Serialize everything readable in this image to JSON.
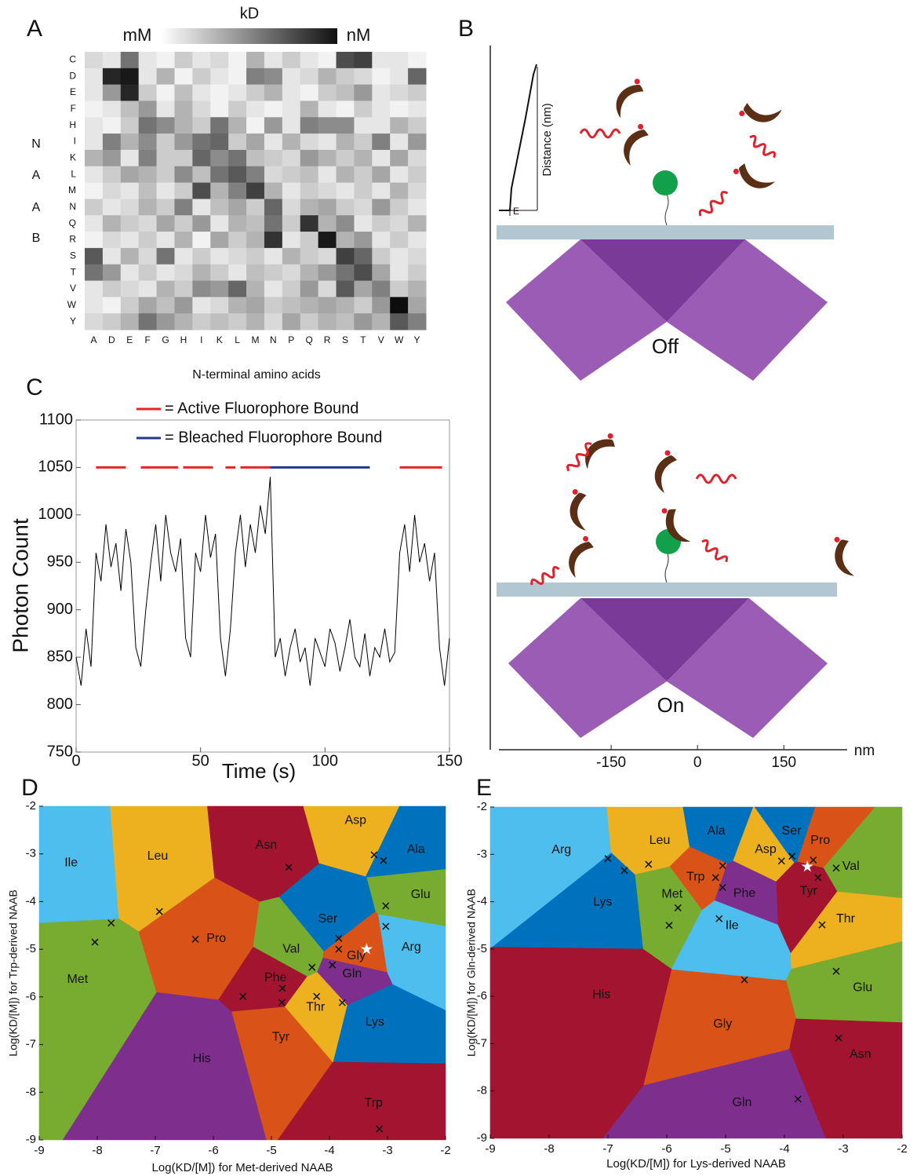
{
  "panel_labels": [
    "A",
    "B",
    "C",
    "D",
    "E"
  ],
  "chart_data": [
    {
      "type": "heatmap",
      "x_label": "N-terminal amino acids",
      "y_label": [
        "N",
        "A",
        "A",
        "B"
      ],
      "colorbar_label": "kD",
      "colorbar_low": "mM",
      "colorbar_high": "nM",
      "columns": [
        "A",
        "D",
        "E",
        "F",
        "G",
        "H",
        "I",
        "K",
        "L",
        "M",
        "N",
        "P",
        "Q",
        "R",
        "S",
        "T",
        "V",
        "W",
        "Y"
      ],
      "rows": [
        "C",
        "D",
        "E",
        "F",
        "H",
        "I",
        "K",
        "L",
        "M",
        "N",
        "Q",
        "R",
        "S",
        "T",
        "V",
        "W",
        "Y"
      ],
      "values": [
        [
          0.15,
          0.1,
          0.55,
          0.1,
          0.05,
          0.2,
          0.1,
          0.15,
          0.05,
          0.3,
          0.1,
          0.2,
          0.1,
          0.05,
          0.7,
          0.75,
          0.1,
          0.1,
          0.05
        ],
        [
          0.1,
          0.85,
          0.9,
          0.1,
          0.3,
          0.05,
          0.2,
          0.1,
          0.05,
          0.5,
          0.45,
          0.1,
          0.15,
          0.3,
          0.2,
          0.15,
          0.05,
          0.1,
          0.6
        ],
        [
          0.1,
          0.4,
          0.85,
          0.2,
          0.05,
          0.25,
          0.1,
          0.05,
          0.1,
          0.2,
          0.3,
          0.1,
          0.05,
          0.2,
          0.25,
          0.4,
          0.1,
          0.15,
          0.2
        ],
        [
          0.05,
          0.1,
          0.25,
          0.4,
          0.1,
          0.3,
          0.15,
          0.05,
          0.2,
          0.1,
          0.05,
          0.1,
          0.3,
          0.1,
          0.05,
          0.2,
          0.1,
          0.05,
          0.1
        ],
        [
          0.1,
          0.05,
          0.2,
          0.55,
          0.45,
          0.3,
          0.2,
          0.55,
          0.3,
          0.05,
          0.4,
          0.1,
          0.5,
          0.45,
          0.45,
          0.1,
          0.1,
          0.3,
          0.2
        ],
        [
          0.1,
          0.5,
          0.3,
          0.45,
          0.2,
          0.4,
          0.55,
          0.6,
          0.2,
          0.35,
          0.1,
          0.3,
          0.15,
          0.1,
          0.3,
          0.2,
          0.5,
          0.1,
          0.4
        ],
        [
          0.3,
          0.4,
          0.1,
          0.5,
          0.2,
          0.2,
          0.6,
          0.45,
          0.55,
          0.25,
          0.2,
          0.15,
          0.4,
          0.3,
          0.2,
          0.3,
          0.1,
          0.35,
          0.15
        ],
        [
          0.1,
          0.2,
          0.35,
          0.3,
          0.2,
          0.45,
          0.25,
          0.55,
          0.65,
          0.5,
          0.15,
          0.2,
          0.25,
          0.1,
          0.3,
          0.2,
          0.35,
          0.1,
          0.2
        ],
        [
          0.05,
          0.15,
          0.1,
          0.25,
          0.1,
          0.2,
          0.7,
          0.3,
          0.5,
          0.75,
          0.3,
          0.1,
          0.2,
          0.15,
          0.1,
          0.2,
          0.1,
          0.3,
          0.15
        ],
        [
          0.2,
          0.1,
          0.15,
          0.3,
          0.2,
          0.5,
          0.1,
          0.25,
          0.35,
          0.2,
          0.6,
          0.15,
          0.3,
          0.35,
          0.2,
          0.15,
          0.4,
          0.2,
          0.1
        ],
        [
          0.1,
          0.3,
          0.2,
          0.15,
          0.35,
          0.2,
          0.4,
          0.1,
          0.3,
          0.25,
          0.55,
          0.2,
          0.8,
          0.3,
          0.45,
          0.1,
          0.2,
          0.15,
          0.3
        ],
        [
          0.05,
          0.15,
          0.1,
          0.2,
          0.1,
          0.3,
          0.05,
          0.35,
          0.2,
          0.3,
          0.8,
          0.1,
          0.2,
          0.9,
          0.3,
          0.4,
          0.1,
          0.2,
          0.1
        ],
        [
          0.65,
          0.1,
          0.3,
          0.15,
          0.55,
          0.1,
          0.2,
          0.1,
          0.15,
          0.2,
          0.1,
          0.3,
          0.2,
          0.15,
          0.75,
          0.6,
          0.2,
          0.1,
          0.15
        ],
        [
          0.55,
          0.4,
          0.1,
          0.2,
          0.1,
          0.15,
          0.3,
          0.2,
          0.1,
          0.25,
          0.2,
          0.15,
          0.3,
          0.4,
          0.55,
          0.7,
          0.35,
          0.1,
          0.2
        ],
        [
          0.1,
          0.2,
          0.15,
          0.1,
          0.3,
          0.2,
          0.45,
          0.4,
          0.6,
          0.3,
          0.1,
          0.2,
          0.4,
          0.15,
          0.65,
          0.35,
          0.5,
          0.2,
          0.3
        ],
        [
          0.1,
          0.05,
          0.2,
          0.35,
          0.25,
          0.4,
          0.1,
          0.15,
          0.3,
          0.35,
          0.2,
          0.25,
          0.3,
          0.35,
          0.3,
          0.2,
          0.4,
          0.95,
          0.35
        ],
        [
          0.15,
          0.2,
          0.3,
          0.55,
          0.4,
          0.3,
          0.2,
          0.25,
          0.2,
          0.3,
          0.15,
          0.35,
          0.2,
          0.3,
          0.25,
          0.4,
          0.3,
          0.65,
          0.5
        ]
      ]
    },
    {
      "type": "line",
      "x_label": "Time (s)",
      "y_label": "Photon Count",
      "xlim": [
        0,
        150
      ],
      "ylim": [
        750,
        1100
      ],
      "xticks": [
        0,
        50,
        100,
        150
      ],
      "yticks": [
        750,
        800,
        850,
        900,
        950,
        1000,
        1050,
        1100
      ],
      "x": [
        0,
        2,
        4,
        6,
        8,
        10,
        12,
        14,
        16,
        18,
        20,
        22,
        24,
        26,
        28,
        30,
        32,
        34,
        36,
        38,
        40,
        42,
        44,
        46,
        48,
        50,
        52,
        54,
        56,
        58,
        60,
        62,
        64,
        66,
        68,
        70,
        72,
        74,
        76,
        78,
        80,
        82,
        84,
        86,
        88,
        90,
        92,
        94,
        96,
        98,
        100,
        102,
        104,
        106,
        108,
        110,
        112,
        114,
        116,
        118,
        120,
        122,
        124,
        126,
        128,
        130,
        132,
        134,
        136,
        138,
        140,
        142,
        144,
        146,
        148,
        150
      ],
      "series": [
        {
          "color": "#000000",
          "values": [
            850,
            820,
            880,
            840,
            960,
            930,
            990,
            945,
            970,
            920,
            985,
            950,
            860,
            840,
            900,
            950,
            990,
            930,
            1000,
            960,
            940,
            975,
            870,
            850,
            960,
            940,
            1000,
            955,
            980,
            870,
            830,
            880,
            960,
            1000,
            945,
            990,
            960,
            1010,
            980,
            1040,
            850,
            870,
            830,
            860,
            880,
            845,
            860,
            820,
            870,
            855,
            840,
            880,
            865,
            835,
            860,
            890,
            850,
            840,
            875,
            830,
            860,
            850,
            880,
            845,
            855,
            960,
            990,
            940,
            1000,
            950,
            970,
            930,
            960,
            860,
            820,
            870
          ]
        }
      ],
      "intervals": [
        {
          "name": "= Active Fluorophore Bound",
          "color": "#e8232a",
          "level": 1050,
          "segments": [
            [
              8,
              20
            ],
            [
              26,
              41
            ],
            [
              43,
              55
            ],
            [
              60,
              64
            ],
            [
              66,
              78
            ],
            [
              130,
              147
            ]
          ]
        },
        {
          "name": "= Bleached Fluorophore Bound",
          "color": "#233a8c",
          "level": 1050,
          "segments": [
            [
              78,
              118
            ]
          ]
        }
      ]
    },
    {
      "type": "voronoi",
      "x_label": "Log(KD/[M]) for Met-derived NAAB",
      "y_label": "Log(KD/[M]) for Trp-derived NAAB",
      "xlim": [
        -9,
        -2
      ],
      "ylim": [
        -9,
        -2
      ],
      "xticks": [
        -9,
        -8,
        -7,
        -6,
        -5,
        -4,
        -3,
        -2
      ],
      "yticks": [
        -9,
        -8,
        -7,
        -6,
        -5,
        -4,
        -3,
        -2
      ],
      "regions": [
        {
          "name": "Ile",
          "color": "#4DBEEE",
          "x": -8.45,
          "y": -3.19
        },
        {
          "name": "Leu",
          "color": "#EDB120",
          "x": -6.96,
          "y": -3.05
        },
        {
          "name": "Asn",
          "color": "#A2142F",
          "x": -5.09,
          "y": -2.82
        },
        {
          "name": "Asp",
          "color": "#EDB120",
          "x": -3.55,
          "y": -2.3
        },
        {
          "name": "Ala",
          "color": "#0072BD",
          "x": -2.51,
          "y": -2.91
        },
        {
          "name": "Glu",
          "color": "#77AC30",
          "x": -2.43,
          "y": -3.86
        },
        {
          "name": "Met",
          "color": "#77AC30",
          "x": -8.34,
          "y": -5.64
        },
        {
          "name": "Pro",
          "color": "#D95319",
          "x": -5.95,
          "y": -4.78
        },
        {
          "name": "Ser",
          "color": "#0072BD",
          "x": -4.03,
          "y": -4.37
        },
        {
          "name": "Arg",
          "color": "#4DBEEE",
          "x": -2.59,
          "y": -4.96
        },
        {
          "name": "Val",
          "color": "#77AC30",
          "x": -4.66,
          "y": -5.0
        },
        {
          "name": "Gly",
          "color": "#D95319",
          "x": -3.54,
          "y": -5.14
        },
        {
          "name": "Gln",
          "color": "#7E2F8E",
          "x": -3.61,
          "y": -5.52
        },
        {
          "name": "Phe",
          "color": "#A2142F",
          "x": -4.93,
          "y": -5.6
        },
        {
          "name": "Thr",
          "color": "#EDB120",
          "x": -4.24,
          "y": -6.22
        },
        {
          "name": "Lys",
          "color": "#0072BD",
          "x": -3.22,
          "y": -6.53
        },
        {
          "name": "Tyr",
          "color": "#D95319",
          "x": -4.84,
          "y": -6.85
        },
        {
          "name": "His",
          "color": "#7E2F8E",
          "x": -6.2,
          "y": -7.3
        },
        {
          "name": "Trp",
          "color": "#A2142F",
          "x": -3.24,
          "y": -8.23
        }
      ],
      "points": {
        "x": [
          -7.76,
          -8.04,
          -6.93,
          -6.31,
          -4.7,
          -3.23,
          -3.07,
          -3.03,
          -3.03,
          -3.84,
          -3.84,
          -3.95,
          -4.3,
          -4.81,
          -4.82,
          -4.22,
          -3.78,
          -5.49,
          -3.14
        ],
        "y": [
          -4.45,
          -4.85,
          -4.21,
          -4.79,
          -3.28,
          -3.02,
          -3.14,
          -4.09,
          -4.52,
          -4.77,
          -5.0,
          -5.33,
          -5.38,
          -5.82,
          -6.12,
          -5.99,
          -6.12,
          -5.99,
          -8.77
        ]
      },
      "star": {
        "x": -3.36,
        "y": -5.0
      }
    },
    {
      "type": "voronoi",
      "x_label": "Log(KD/[M]) for Lys-derived NAAB",
      "y_label": "Log(KD/[M]) for Gln-derived NAAB",
      "xlim": [
        -9,
        -2
      ],
      "ylim": [
        -9,
        -2
      ],
      "xticks": [
        -9,
        -8,
        -7,
        -6,
        -5,
        -4,
        -3,
        -2
      ],
      "yticks": [
        -9,
        -8,
        -7,
        -6,
        -5,
        -4,
        -3,
        -2
      ],
      "regions": [
        {
          "name": "Arg",
          "color": "#4DBEEE",
          "x": -7.79,
          "y": -2.91
        },
        {
          "name": "Leu",
          "color": "#EDB120",
          "x": -6.12,
          "y": -2.71
        },
        {
          "name": "Ala",
          "color": "#0072BD",
          "x": -5.16,
          "y": -2.51
        },
        {
          "name": "Asp",
          "color": "#EDB120",
          "x": -4.32,
          "y": -2.9
        },
        {
          "name": "Ser",
          "color": "#0072BD",
          "x": -3.88,
          "y": -2.51
        },
        {
          "name": "Pro",
          "color": "#D95319",
          "x": -3.39,
          "y": -2.71
        },
        {
          "name": "Val",
          "color": "#77AC30",
          "x": -2.87,
          "y": -3.26
        },
        {
          "name": "Trp",
          "color": "#D95319",
          "x": -5.51,
          "y": -3.48
        },
        {
          "name": "Tyr",
          "color": "#A2142F",
          "x": -3.59,
          "y": -3.78
        },
        {
          "name": "Phe",
          "color": "#7E2F8E",
          "x": -4.68,
          "y": -3.83
        },
        {
          "name": "Met",
          "color": "#77AC30",
          "x": -5.91,
          "y": -3.85
        },
        {
          "name": "Lys",
          "color": "#0072BD",
          "x": -7.09,
          "y": -4.01
        },
        {
          "name": "Ile",
          "color": "#4DBEEE",
          "x": -4.89,
          "y": -4.51
        },
        {
          "name": "Thr",
          "color": "#EDB120",
          "x": -2.96,
          "y": -4.37
        },
        {
          "name": "His",
          "color": "#A2142F",
          "x": -7.11,
          "y": -5.97
        },
        {
          "name": "Glu",
          "color": "#77AC30",
          "x": -2.67,
          "y": -5.82
        },
        {
          "name": "Gly",
          "color": "#D95319",
          "x": -5.05,
          "y": -6.59
        },
        {
          "name": "Asn",
          "color": "#A2142F",
          "x": -2.71,
          "y": -7.23
        },
        {
          "name": "Gln",
          "color": "#7E2F8E",
          "x": -4.72,
          "y": -8.25
        }
      ],
      "points": {
        "x": [
          -7.0,
          -6.72,
          -6.31,
          -5.05,
          -5.17,
          -5.05,
          -5.81,
          -5.96,
          -5.11,
          -4.05,
          -3.87,
          -3.51,
          -3.43,
          -3.12,
          -3.36,
          -3.12,
          -4.68,
          -3.08,
          -3.77
        ],
        "y": [
          -3.09,
          -3.34,
          -3.21,
          -3.24,
          -3.49,
          -3.7,
          -4.13,
          -4.5,
          -4.36,
          -3.14,
          -3.04,
          -3.12,
          -3.49,
          -3.29,
          -4.49,
          -5.47,
          -5.65,
          -6.88,
          -8.17
        ]
      },
      "star": {
        "x": -3.61,
        "y": -3.26
      }
    }
  ],
  "diagram_b": {
    "states": [
      "Off",
      "On"
    ],
    "inset_axis_label": "Distance (nm)",
    "inset_label": "E",
    "axis_unit": "nm",
    "xlim": [
      -360,
      260
    ],
    "xticks": [
      -150,
      0,
      150
    ]
  }
}
